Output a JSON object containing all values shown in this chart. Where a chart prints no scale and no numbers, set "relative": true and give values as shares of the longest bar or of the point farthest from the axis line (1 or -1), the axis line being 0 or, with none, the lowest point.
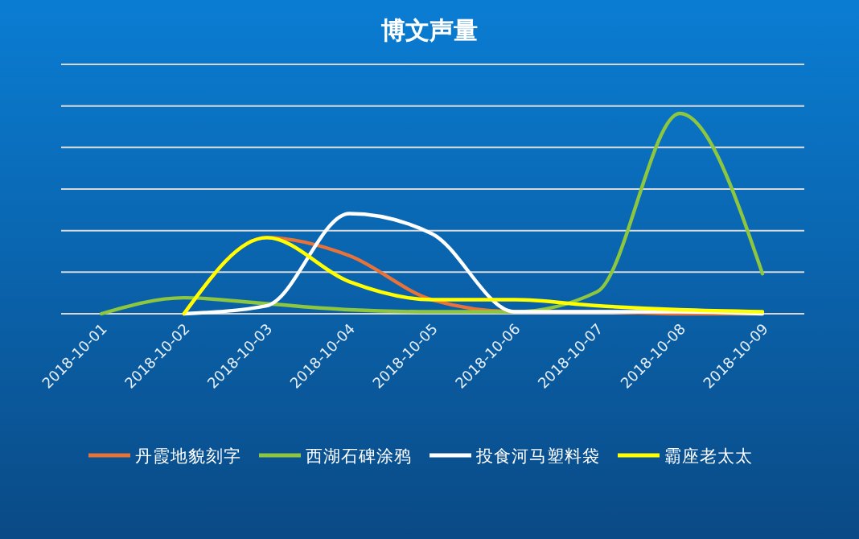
{
  "chart_data": {
    "type": "line",
    "title": "博文声量",
    "relative": true,
    "grid": true,
    "legend": "bottom",
    "marker": "none",
    "categories": [
      "2018-10-01",
      "2018-10-02",
      "2018-10-03",
      "2018-10-04",
      "2018-10-05",
      "2018-10-06",
      "2018-10-07",
      "2018-10-08",
      "2018-10-09"
    ],
    "series": [
      {
        "name": "丹霞地貌刻字",
        "color": "#e8733a",
        "values": [
          null,
          0,
          0.38,
          0.29,
          0.07,
          0.01,
          0.01,
          0,
          0
        ]
      },
      {
        "name": "西湖石碑涂鸦",
        "color": "#8dc63f",
        "values": [
          0,
          0.08,
          0.05,
          0.02,
          0.01,
          0.01,
          0.11,
          1,
          0.2
        ]
      },
      {
        "name": "投食河马塑料袋",
        "color": "#ffffff",
        "values": [
          null,
          0,
          0.04,
          0.5,
          0.4,
          0.01,
          0.01,
          0.01,
          0
        ]
      },
      {
        "name": "霸座老太太",
        "color": "#ffff00",
        "values": [
          null,
          0,
          0.38,
          0.16,
          0.07,
          0.07,
          0.04,
          0.02,
          0.01
        ]
      }
    ]
  }
}
